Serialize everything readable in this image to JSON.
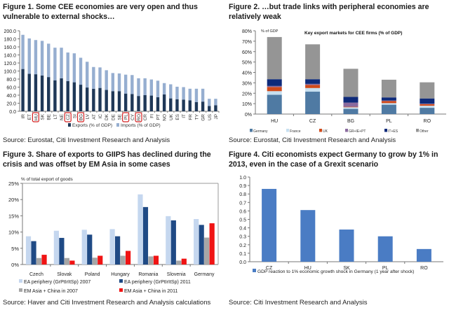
{
  "figures": {
    "fig1": {
      "title": "Figure 1. Some CEE economies are very open and thus vulnerable to external shocks…",
      "source": "Source: Eurostat, Citi Investment Research and Analysis"
    },
    "fig2": {
      "title": "Figure 2. …but trade links with peripheral economies are relatively weak",
      "source": "Source: Eurostat, Citi Investment Research and Analysis"
    },
    "fig3": {
      "title": "Figure 3. Share of exports to GIIPS has declined during the crisis and was offset by EM Asia in some cases",
      "source": "Source: Haver and Citi Investment Research and Analysis calculations"
    },
    "fig4": {
      "title": "Figure 4. Citi economists expect Germany to grow by 1% in 2013, even in the case of a Grexit scenario",
      "source": "Source: Citi Investment Research and Analysis"
    }
  },
  "chart_data": [
    {
      "id": "fig1",
      "type": "bar",
      "stacked": true,
      "title": "",
      "xlabel": "",
      "ylabel": "",
      "ylim": [
        0,
        200
      ],
      "yticks": [
        0,
        20,
        40,
        60,
        80,
        100,
        120,
        140,
        160,
        180,
        200
      ],
      "ytick_labels": [
        "0.0",
        "20.0",
        "40.0",
        "60.0",
        "80.0",
        "100.0",
        "120.0",
        "140.0",
        "160.0",
        "180.0",
        "200.0"
      ],
      "categories": [
        "IR",
        "ET",
        "HU",
        "SK",
        "BE",
        "LT",
        "NE",
        "CZ",
        "SI",
        "BG",
        "LV",
        "AT",
        "IC",
        "DK",
        "DE",
        "SE",
        "PL",
        "CY",
        "RO",
        "CR",
        "FI",
        "PT",
        "NO",
        "UK",
        "ES",
        "IT",
        "FR",
        "TY",
        "GR",
        "US",
        "JP"
      ],
      "highlighted_categories": [
        "HU",
        "CZ",
        "BG",
        "PL",
        "RO"
      ],
      "highlight_color": "#d42020",
      "series": [
        {
          "name": "Exports (% of GDP)",
          "color": "#1f3858",
          "values": [
            105,
            93,
            92,
            89,
            85,
            77,
            82,
            75,
            72,
            66,
            59,
            56,
            58,
            53,
            50,
            50,
            44,
            43,
            38,
            40,
            39,
            35,
            42,
            32,
            30,
            29,
            27,
            23,
            24,
            13,
            15
          ]
        },
        {
          "name": "Imports (% of GDP)",
          "color": "#96aed0",
          "values": [
            85,
            88,
            85,
            86,
            83,
            81,
            76,
            71,
            72,
            67,
            64,
            54,
            51,
            49,
            45,
            44,
            47,
            47,
            44,
            42,
            40,
            41,
            28,
            35,
            31,
            31,
            29,
            33,
            32,
            18,
            16
          ]
        }
      ],
      "legend_position": "bottom",
      "grid": false
    },
    {
      "id": "fig2",
      "type": "bar",
      "stacked": true,
      "title": "Key export markets for CEE firms (% of GDP)",
      "ylabel": "% of GDP",
      "xlabel": "",
      "ylim": [
        0,
        80
      ],
      "yticks": [
        0,
        10,
        20,
        30,
        40,
        50,
        60,
        70,
        80
      ],
      "ytick_labels": [
        "0%",
        "10%",
        "20%",
        "30%",
        "40%",
        "50%",
        "60%",
        "70%",
        "80%"
      ],
      "categories": [
        "HU",
        "CZ",
        "BG",
        "PL",
        "RO"
      ],
      "series": [
        {
          "name": "Germany",
          "color": "#4f7aa3",
          "values": [
            18.5,
            21.5,
            5,
            9,
            6
          ]
        },
        {
          "name": "France",
          "color": "#c6dff0",
          "values": [
            3.5,
            3.5,
            1.5,
            1.5,
            2
          ]
        },
        {
          "name": "UK",
          "color": "#d04a1a",
          "values": [
            4,
            3,
            0.5,
            2,
            1.5
          ]
        },
        {
          "name": "GR+IE+PT",
          "color": "#8a6a9e",
          "values": [
            1,
            1,
            4,
            0.5,
            0.5
          ]
        },
        {
          "name": "IT+ES",
          "color": "#0e2a7a",
          "values": [
            6.5,
            4.5,
            5.5,
            3,
            5
          ]
        },
        {
          "name": "Other",
          "color": "#959595",
          "values": [
            40.5,
            33.5,
            27,
            17,
            15.5
          ]
        }
      ],
      "legend_position": "bottom",
      "grid": false
    },
    {
      "id": "fig3",
      "type": "bar",
      "stacked": false,
      "title": "",
      "ylabel": "% of total export of goods",
      "xlabel": "",
      "ylim": [
        0,
        25
      ],
      "yticks": [
        0,
        5,
        10,
        15,
        20,
        25
      ],
      "ytick_labels": [
        "0%",
        "5%",
        "10%",
        "15%",
        "20%",
        "25%"
      ],
      "categories": [
        "Czech",
        "Slovak",
        "Poland",
        "Hungary",
        "Romania",
        "Slovenia",
        "Germany"
      ],
      "series": [
        {
          "name": "EA periphery (GrPtIrItSp) 2007",
          "color": "#c5d7ef",
          "values": [
            8.7,
            10.4,
            10.7,
            10.9,
            21.6,
            14.9,
            14.0
          ]
        },
        {
          "name": "EA periphery (GrPtIrItSp) 2011",
          "color": "#1f4a85",
          "values": [
            7.2,
            8.2,
            9.2,
            8.7,
            17.7,
            13.6,
            12.2
          ]
        },
        {
          "name": "EM Asia + China in 2007",
          "color": "#a6a6a6",
          "values": [
            2.0,
            2.0,
            2.1,
            2.7,
            2.5,
            1.2,
            8.3
          ]
        },
        {
          "name": "EM Asia + China in 2011",
          "color": "#f01414",
          "values": [
            3.0,
            1.2,
            2.7,
            4.2,
            2.7,
            1.8,
            12.7
          ]
        }
      ],
      "legend_position": "bottom",
      "grid": false
    },
    {
      "id": "fig4",
      "type": "bar",
      "stacked": false,
      "title": "",
      "ylabel": "",
      "xlabel": "",
      "ylim": [
        0,
        1.0
      ],
      "yticks": [
        0,
        0.1,
        0.2,
        0.3,
        0.4,
        0.5,
        0.6,
        0.7,
        0.8,
        0.9,
        1.0
      ],
      "ytick_labels": [
        "0.0",
        "0.1",
        "0.2",
        "0.3",
        "0.4",
        "0.5",
        "0.6",
        "0.7",
        "0.8",
        "0.9",
        "1.0"
      ],
      "categories": [
        "CZ",
        "HU",
        "SK",
        "PL",
        "RO"
      ],
      "series": [
        {
          "name": "GDP reaction to 1% economic growth shock in Germany (1 year after shock)",
          "color": "#4a7cc4",
          "values": [
            0.86,
            0.61,
            0.38,
            0.3,
            0.15
          ]
        }
      ],
      "legend_position": "bottom",
      "grid": false
    }
  ]
}
